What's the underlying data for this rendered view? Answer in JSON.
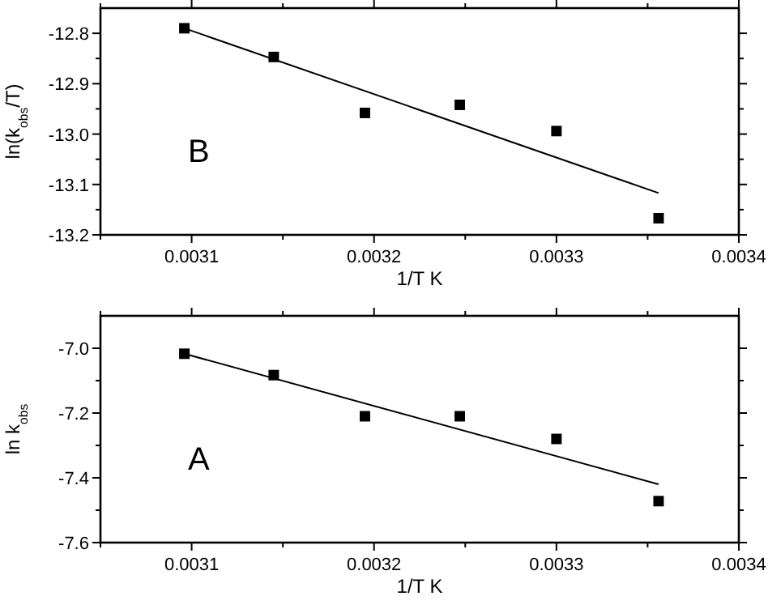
{
  "chart_data": [
    {
      "type": "scatter",
      "xlabel": "1/T K",
      "ylabel": "ln(k$_{obs}$/T)",
      "xlim": [
        0.00305,
        0.0034
      ],
      "xticks": [
        {
          "value": 0.00305,
          "label": null
        },
        0.0031,
        {
          "value": 0.00315,
          "label": null
        },
        0.0032,
        {
          "value": 0.00325,
          "label": null
        },
        0.0033,
        {
          "value": 0.00335,
          "label": null
        },
        0.0034
      ],
      "ylim": [
        -13.2,
        -12.75
      ],
      "yticks": [
        {
          "value": -13.2,
          "label": "-13.2"
        },
        {
          "value": -13.15,
          "label": null
        },
        {
          "value": -13.1,
          "label": "-13.1"
        },
        {
          "value": -13.05,
          "label": null
        },
        {
          "value": -13.0,
          "label": "-13.0"
        },
        {
          "value": -12.95,
          "label": null
        },
        {
          "value": -12.9,
          "label": "-12.9"
        },
        {
          "value": -12.85,
          "label": null
        },
        {
          "value": -12.8,
          "label": "-12.8"
        }
      ],
      "annotations": [
        "B"
      ],
      "series": [
        {
          "color": "#000000",
          "marker": "square",
          "x": [
            0.003096,
            0.003145,
            0.003195,
            0.003247,
            0.0033,
            0.003356
          ],
          "values": [
            -12.79,
            -12.847,
            -12.958,
            -12.942,
            -12.994,
            -13.167
          ]
        },
        {
          "type": "line",
          "color": "#000000",
          "marker": "none",
          "x": [
            0.003096,
            0.003356
          ],
          "values": [
            -12.79,
            -13.117
          ]
        }
      ]
    },
    {
      "type": "scatter",
      "xlabel": "1/T K",
      "ylabel": "ln k$_{obs}$",
      "xlim": [
        0.00305,
        0.0034
      ],
      "xticks": [
        {
          "value": 0.00305,
          "label": null
        },
        0.0031,
        {
          "value": 0.00315,
          "label": null
        },
        0.0032,
        {
          "value": 0.00325,
          "label": null
        },
        0.0033,
        {
          "value": 0.00335,
          "label": null
        },
        0.0034
      ],
      "ylim": [
        -7.6,
        -6.9
      ],
      "yticks": [
        {
          "value": -7.6,
          "label": "-7.6"
        },
        {
          "value": -7.5,
          "label": null
        },
        {
          "value": -7.4,
          "label": "-7.4"
        },
        {
          "value": -7.3,
          "label": null
        },
        {
          "value": -7.2,
          "label": "-7.2"
        },
        {
          "value": -7.1,
          "label": null
        },
        {
          "value": -7.0,
          "label": "-7.0"
        }
      ],
      "annotations": [
        "A"
      ],
      "series": [
        {
          "color": "#000000",
          "marker": "square",
          "x": [
            0.003096,
            0.003145,
            0.003195,
            0.003247,
            0.0033,
            0.003356
          ],
          "values": [
            -7.017,
            -7.083,
            -7.21,
            -7.21,
            -7.28,
            -7.472
          ]
        },
        {
          "type": "line",
          "color": "#000000",
          "marker": "none",
          "x": [
            0.003096,
            0.003356
          ],
          "values": [
            -7.017,
            -7.42
          ]
        }
      ]
    }
  ]
}
